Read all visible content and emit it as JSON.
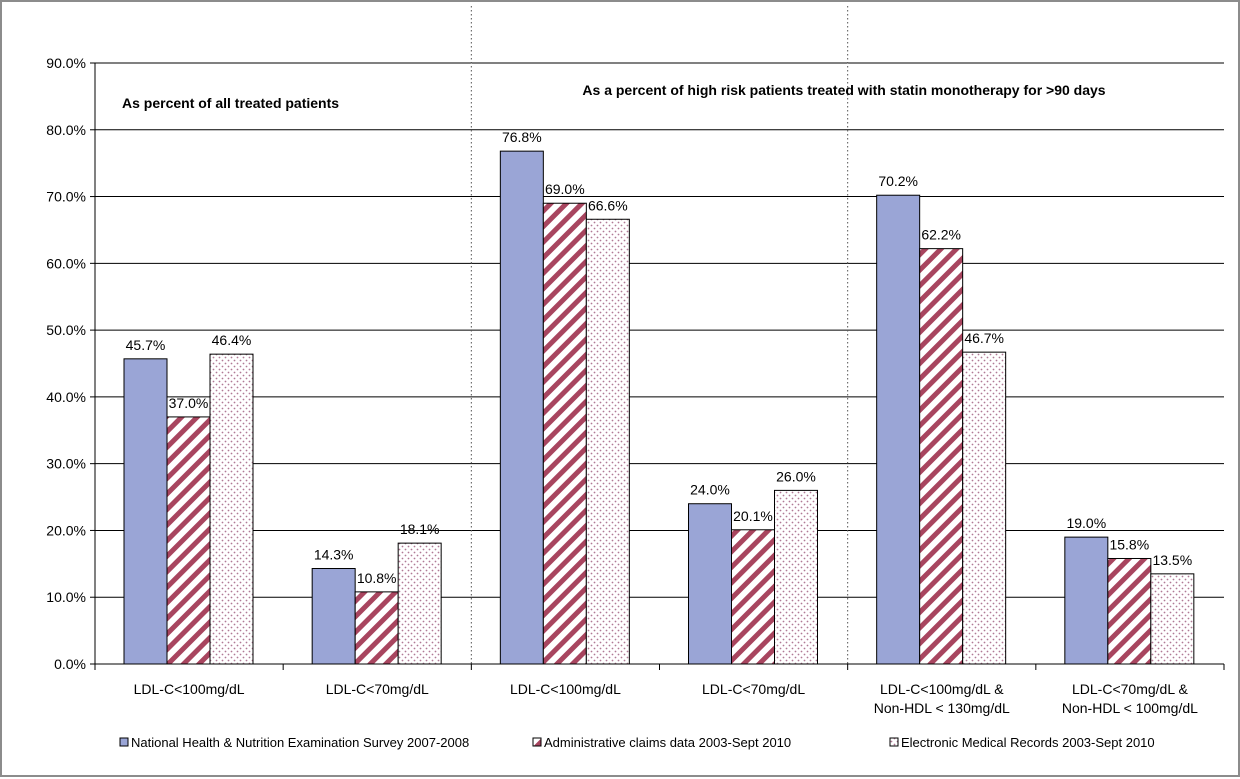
{
  "chart_data": {
    "type": "bar",
    "categories": [
      [
        "LDL-C<100mg/dL"
      ],
      [
        "LDL-C<70mg/dL"
      ],
      [
        "LDL-C<100mg/dL"
      ],
      [
        "LDL-C<70mg/dL"
      ],
      [
        "LDL-C<100mg/dL &",
        "Non-HDL < 130mg/dL"
      ],
      [
        "LDL-C<70mg/dL &",
        "Non-HDL < 100mg/dL"
      ]
    ],
    "series": [
      {
        "name": "National Health & Nutrition Examination Survey 2007-2008",
        "values": [
          45.7,
          14.3,
          76.8,
          24.0,
          70.2,
          19.0
        ],
        "labels": [
          "45.7%",
          "14.3%",
          "76.8%",
          "24.0%",
          "70.2%",
          "19.0%"
        ],
        "fill": "#9aa5d6",
        "pattern": "solid"
      },
      {
        "name": "Administrative claims data 2003-Sept 2010",
        "values": [
          37.0,
          10.8,
          69.0,
          20.1,
          62.2,
          15.8
        ],
        "labels": [
          "37.0%",
          "10.8%",
          "69.0%",
          "20.1%",
          "62.2%",
          "15.8%"
        ],
        "fill": "#a8455f",
        "pattern": "diagonal"
      },
      {
        "name": "Electronic Medical Records 2003-Sept 2010",
        "values": [
          46.4,
          18.1,
          66.6,
          26.0,
          46.7,
          13.5
        ],
        "labels": [
          "46.4%",
          "18.1%",
          "66.6%",
          "26.0%",
          "46.7%",
          "13.5%"
        ],
        "fill": "#b07a95",
        "pattern": "dots"
      }
    ],
    "yticks": [
      "0.0%",
      "10.0%",
      "20.0%",
      "30.0%",
      "40.0%",
      "50.0%",
      "60.0%",
      "70.0%",
      "80.0%",
      "90.0%"
    ],
    "ylim": [
      0,
      90
    ],
    "grid": true,
    "legend": "bottom",
    "annotations": [
      {
        "text": "As percent of all treated patients",
        "group": "left"
      },
      {
        "text": "As a percent of high risk patients treated with statin monotherapy for >90 days",
        "group": "right"
      }
    ],
    "title": "",
    "xlabel": "",
    "ylabel": ""
  }
}
